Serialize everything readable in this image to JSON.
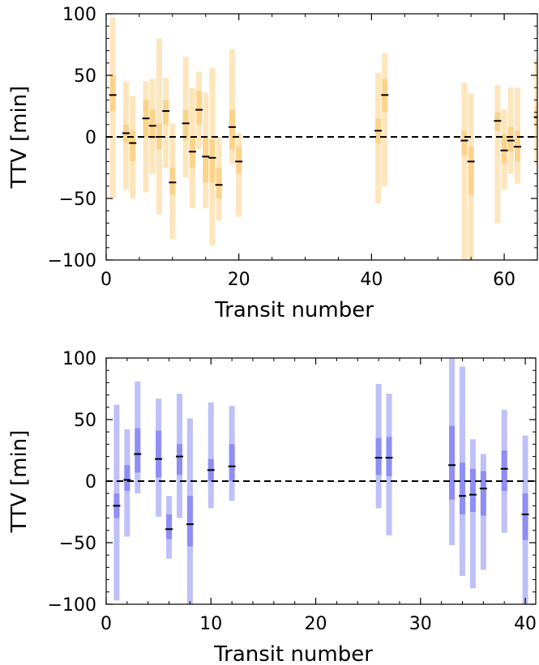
{
  "chart_data": [
    {
      "type": "errorbar",
      "xlabel": "Transit number",
      "ylabel": "TTV [min]",
      "xlim": [
        0,
        65
      ],
      "ylim": [
        -100,
        100
      ],
      "xticks": [
        0,
        20,
        40,
        60
      ],
      "yticks": [
        -100,
        -50,
        0,
        50,
        100
      ],
      "xtick_labels": [
        "0",
        "20",
        "40",
        "60"
      ],
      "ytick_labels": [
        "−100",
        "−50",
        "0",
        "50",
        "100"
      ],
      "zero_line": true,
      "grid": false,
      "colors": {
        "inner": "#fbd38b",
        "outer": "#fde6bd",
        "median": "#000000"
      },
      "points": [
        {
          "x": 1,
          "y": 34,
          "inner": [
            21,
            50
          ],
          "outer": [
            -50,
            97
          ]
        },
        {
          "x": 3,
          "y": 3,
          "inner": [
            -5,
            10
          ],
          "outer": [
            -43,
            45
          ]
        },
        {
          "x": 4,
          "y": -5,
          "inner": [
            -20,
            5
          ],
          "outer": [
            -50,
            33
          ]
        },
        {
          "x": 6,
          "y": 15,
          "inner": [
            0,
            30
          ],
          "outer": [
            -45,
            45
          ]
        },
        {
          "x": 7,
          "y": 9,
          "inner": [
            -2,
            22
          ],
          "outer": [
            -30,
            47
          ]
        },
        {
          "x": 8,
          "y": 0,
          "inner": [
            -10,
            11
          ],
          "outer": [
            -63,
            80
          ]
        },
        {
          "x": 9,
          "y": 21,
          "inner": [
            10,
            30
          ],
          "outer": [
            -25,
            48
          ]
        },
        {
          "x": 10,
          "y": -37,
          "inner": [
            -47,
            -25
          ],
          "outer": [
            -83,
            11
          ]
        },
        {
          "x": 12,
          "y": 11,
          "inner": [
            -3,
            22
          ],
          "outer": [
            -33,
            65
          ]
        },
        {
          "x": 13,
          "y": -12,
          "inner": [
            -25,
            0
          ],
          "outer": [
            -58,
            40
          ]
        },
        {
          "x": 14,
          "y": 22,
          "inner": [
            10,
            37
          ],
          "outer": [
            -10,
            53
          ]
        },
        {
          "x": 15,
          "y": -16,
          "inner": [
            -37,
            0
          ],
          "outer": [
            -58,
            36
          ]
        },
        {
          "x": 16,
          "y": -17,
          "inner": [
            -37,
            -2
          ],
          "outer": [
            -88,
            56
          ]
        },
        {
          "x": 17,
          "y": -39,
          "inner": [
            -50,
            -25
          ],
          "outer": [
            -68,
            0
          ]
        },
        {
          "x": 19,
          "y": 8,
          "inner": [
            -10,
            22
          ],
          "outer": [
            -22,
            71
          ]
        },
        {
          "x": 20,
          "y": -20,
          "inner": [
            -30,
            -8
          ],
          "outer": [
            -65,
            3
          ]
        },
        {
          "x": 41,
          "y": 5,
          "inner": [
            -5,
            15
          ],
          "outer": [
            -54,
            52
          ]
        },
        {
          "x": 42,
          "y": 34,
          "inner": [
            20,
            47
          ],
          "outer": [
            -40,
            68
          ]
        },
        {
          "x": 54,
          "y": -3,
          "inner": [
            -15,
            5
          ],
          "outer": [
            -100,
            44
          ]
        },
        {
          "x": 55,
          "y": -20,
          "inner": [
            -47,
            -8
          ],
          "outer": [
            -100,
            35
          ]
        },
        {
          "x": 59,
          "y": 13,
          "inner": [
            5,
            20
          ],
          "outer": [
            -70,
            42
          ]
        },
        {
          "x": 60,
          "y": -11,
          "inner": [
            -22,
            2
          ],
          "outer": [
            -43,
            22
          ]
        },
        {
          "x": 61,
          "y": -3,
          "inner": [
            -12,
            8
          ],
          "outer": [
            -30,
            40
          ]
        },
        {
          "x": 62,
          "y": -8,
          "inner": [
            -20,
            5
          ],
          "outer": [
            -38,
            40
          ]
        },
        {
          "x": 65,
          "y": 16,
          "inner": [
            8,
            25
          ],
          "outer": [
            -23,
            63
          ]
        }
      ]
    },
    {
      "type": "errorbar",
      "xlabel": "Transit number",
      "ylabel": "TTV [min]",
      "xlim": [
        0,
        41
      ],
      "ylim": [
        -100,
        100
      ],
      "xticks": [
        0,
        10,
        20,
        30,
        40
      ],
      "yticks": [
        -100,
        -50,
        0,
        50,
        100
      ],
      "xtick_labels": [
        "0",
        "10",
        "20",
        "30",
        "40"
      ],
      "ytick_labels": [
        "−100",
        "−50",
        "0",
        "50",
        "100"
      ],
      "zero_line": true,
      "grid": false,
      "colors": {
        "inner": "#8e8ef5",
        "outer": "#c0c0f9",
        "median": "#000000"
      },
      "points": [
        {
          "x": 1,
          "y": -20,
          "inner": [
            -30,
            -10
          ],
          "outer": [
            -97,
            62
          ]
        },
        {
          "x": 2,
          "y": 1,
          "inner": [
            -8,
            13
          ],
          "outer": [
            -45,
            42
          ]
        },
        {
          "x": 3,
          "y": 22,
          "inner": [
            7,
            43
          ],
          "outer": [
            -10,
            81
          ]
        },
        {
          "x": 5,
          "y": 18,
          "inner": [
            3,
            41
          ],
          "outer": [
            -29,
            67
          ]
        },
        {
          "x": 6,
          "y": -39,
          "inner": [
            -47,
            -27
          ],
          "outer": [
            -63,
            -12
          ]
        },
        {
          "x": 7,
          "y": 20,
          "inner": [
            5,
            30
          ],
          "outer": [
            -30,
            71
          ]
        },
        {
          "x": 8,
          "y": -35,
          "inner": [
            -53,
            -12
          ],
          "outer": [
            -100,
            51
          ]
        },
        {
          "x": 10,
          "y": 9,
          "inner": [
            0,
            18
          ],
          "outer": [
            -22,
            64
          ]
        },
        {
          "x": 12,
          "y": 12,
          "inner": [
            0,
            30
          ],
          "outer": [
            -16,
            61
          ]
        },
        {
          "x": 26,
          "y": 19,
          "inner": [
            5,
            35
          ],
          "outer": [
            -22,
            79
          ]
        },
        {
          "x": 27,
          "y": 19,
          "inner": [
            4,
            36
          ],
          "outer": [
            -44,
            71
          ]
        },
        {
          "x": 33,
          "y": 13,
          "inner": [
            -15,
            45
          ],
          "outer": [
            -52,
            100
          ]
        },
        {
          "x": 34,
          "y": -12,
          "inner": [
            -27,
            15
          ],
          "outer": [
            -77,
            93
          ]
        },
        {
          "x": 35,
          "y": -11,
          "inner": [
            -25,
            10
          ],
          "outer": [
            -87,
            34
          ]
        },
        {
          "x": 36,
          "y": -6,
          "inner": [
            -28,
            8
          ],
          "outer": [
            -72,
            22
          ]
        },
        {
          "x": 38,
          "y": 10,
          "inner": [
            -8,
            25
          ],
          "outer": [
            -42,
            58
          ]
        },
        {
          "x": 40,
          "y": -27,
          "inner": [
            -48,
            -10
          ],
          "outer": [
            -100,
            37
          ]
        }
      ]
    }
  ]
}
